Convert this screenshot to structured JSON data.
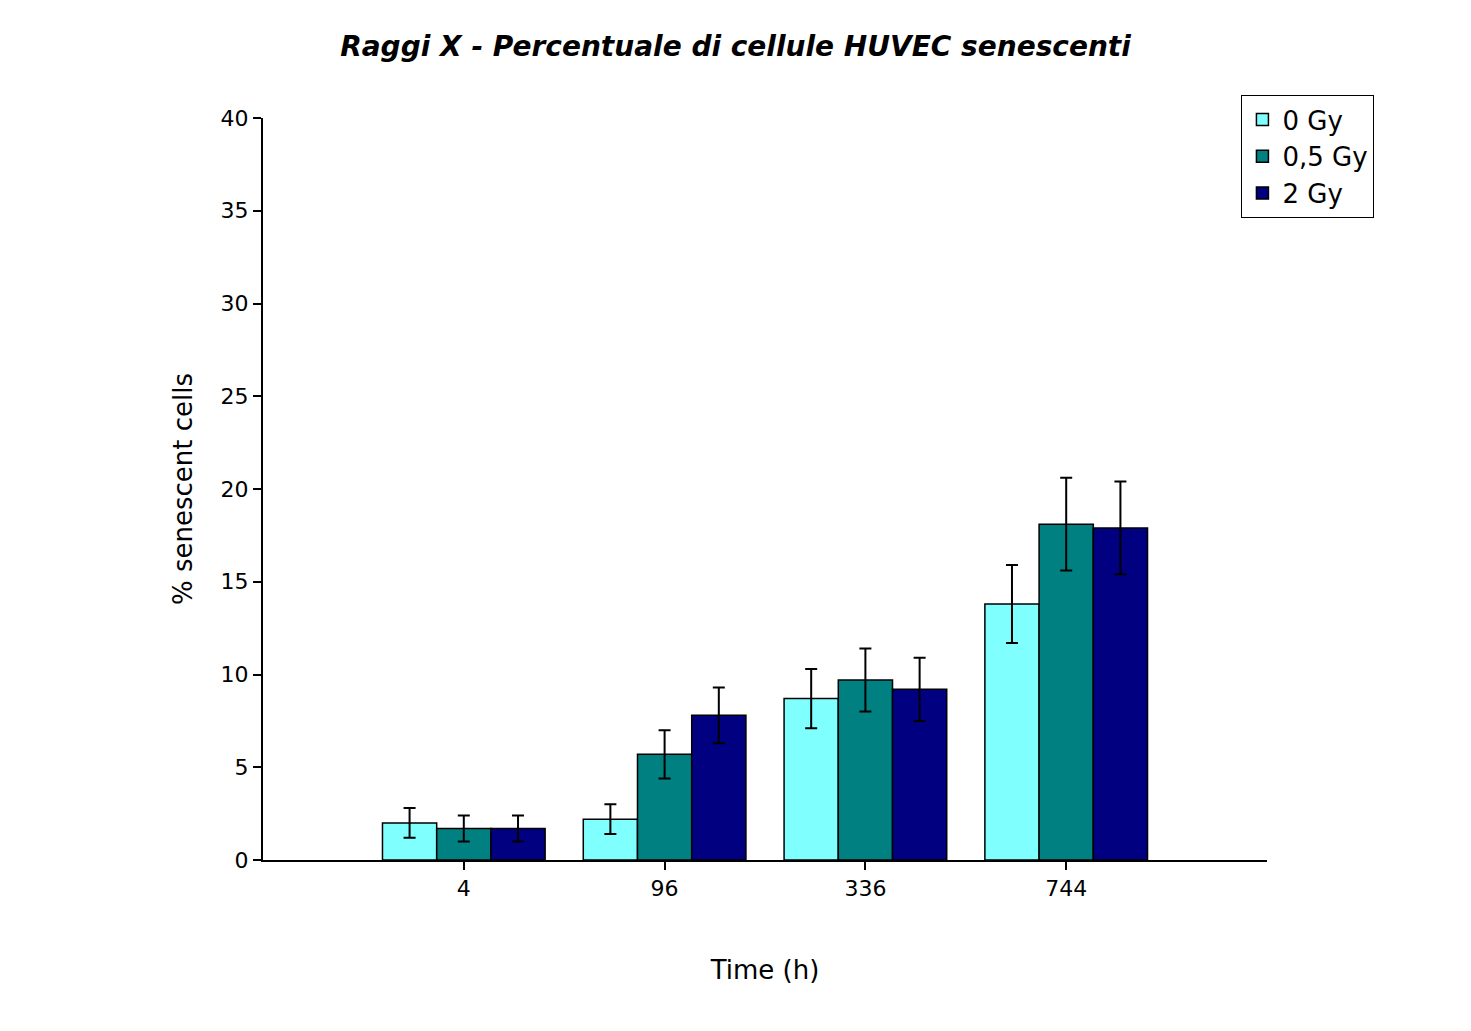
{
  "chart_data": {
    "type": "bar",
    "title": "Raggi X - Percentuale di cellule HUVEC senescenti",
    "x_label": "Time (h)",
    "y_label": "% senescent cells",
    "categories": [
      "4",
      "96",
      "336",
      "744"
    ],
    "series": [
      {
        "name": "0 Gy",
        "color": "#80ffff",
        "values": [
          2.0,
          2.2,
          8.7,
          13.8
        ],
        "errors": [
          0.8,
          0.8,
          1.6,
          2.1
        ]
      },
      {
        "name": "0,5 Gy",
        "color": "#008080",
        "values": [
          1.7,
          5.7,
          9.7,
          18.1
        ],
        "errors": [
          0.7,
          1.3,
          1.7,
          2.5
        ]
      },
      {
        "name": "2 Gy",
        "color": "#000080",
        "values": [
          1.7,
          7.8,
          9.2,
          17.9
        ],
        "errors": [
          0.7,
          1.5,
          1.7,
          2.5
        ]
      }
    ],
    "ylim": [
      0,
      40
    ],
    "yticks": [
      0,
      5,
      10,
      15,
      20,
      25,
      30,
      35,
      40
    ],
    "grid": false,
    "legend": "top right"
  }
}
